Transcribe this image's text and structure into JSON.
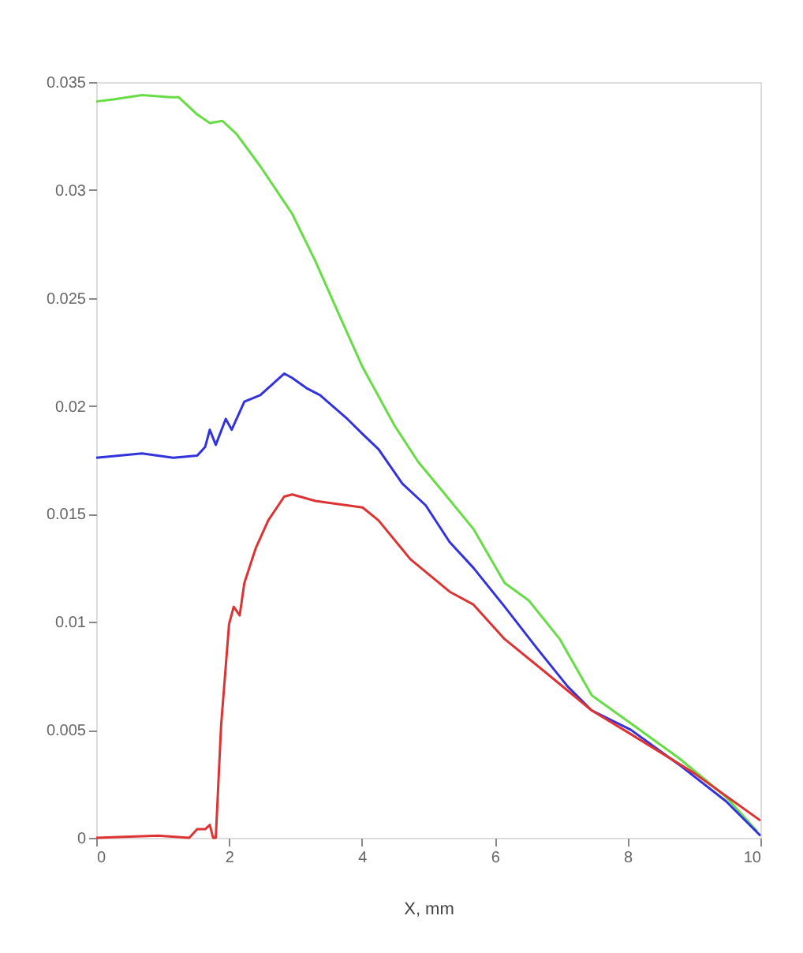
{
  "chart_data": {
    "type": "line",
    "xlabel": "X, mm",
    "xlim": [
      0,
      10
    ],
    "xticks": [
      0,
      2,
      4,
      6,
      8,
      10
    ],
    "ylim": [
      0,
      0.035
    ],
    "yticks": [
      0,
      0.005,
      0.01,
      0.015,
      0.02,
      0.025,
      0.03,
      0.035
    ],
    "grid": false,
    "legend": false,
    "marker": "none",
    "line_style": "solid",
    "series": [
      {
        "color": "#66dd44",
        "x": [
          0,
          0.26,
          0.69,
          1.12,
          1.24,
          1.52,
          1.71,
          1.9,
          2.11,
          2.47,
          2.95,
          3.3,
          3.66,
          4.01,
          4.49,
          4.85,
          5.2,
          5.68,
          6.15,
          6.51,
          6.98,
          7.46,
          8.05,
          8.77,
          9.48,
          9.95
        ],
        "values": [
          0.0341,
          0.0342,
          0.0344,
          0.0343,
          0.0343,
          0.0335,
          0.0331,
          0.0332,
          0.0326,
          0.0311,
          0.0289,
          0.0267,
          0.0242,
          0.0218,
          0.0191,
          0.0174,
          0.0161,
          0.0143,
          0.0118,
          0.011,
          0.0092,
          0.0066,
          0.0053,
          0.0037,
          0.0019,
          0.0003
        ]
      },
      {
        "color": "#3333dd",
        "x": [
          0,
          0.69,
          1.16,
          1.52,
          1.64,
          1.71,
          1.8,
          1.95,
          2.04,
          2.23,
          2.47,
          2.83,
          2.95,
          3.18,
          3.37,
          3.78,
          4.01,
          4.25,
          4.61,
          4.96,
          5.32,
          5.68,
          6.15,
          6.63,
          7.1,
          7.46,
          8.05,
          8.77,
          9.48,
          10
        ],
        "values": [
          0.0176,
          0.0178,
          0.0176,
          0.0177,
          0.0181,
          0.0189,
          0.0182,
          0.0194,
          0.0189,
          0.0202,
          0.0205,
          0.0215,
          0.0213,
          0.0208,
          0.0205,
          0.0194,
          0.0187,
          0.018,
          0.0164,
          0.0154,
          0.0137,
          0.0125,
          0.0107,
          0.0088,
          0.007,
          0.0059,
          0.005,
          0.0034,
          0.0017,
          0.0001
        ]
      },
      {
        "color": "#dd3333",
        "x": [
          0,
          0.93,
          1.4,
          1.52,
          1.64,
          1.71,
          1.76,
          1.8,
          1.88,
          2.0,
          2.07,
          2.16,
          2.23,
          2.4,
          2.59,
          2.83,
          2.95,
          3.3,
          4.01,
          4.25,
          4.73,
          5.32,
          5.68,
          6.15,
          6.75,
          7.46,
          8.05,
          9.0,
          10
        ],
        "values": [
          0,
          0.0001,
          0,
          0.0004,
          0.0004,
          0.0006,
          0,
          0,
          0.0052,
          0.0099,
          0.0107,
          0.0103,
          0.0118,
          0.0134,
          0.0147,
          0.0158,
          0.0159,
          0.0156,
          0.0153,
          0.0147,
          0.0129,
          0.0114,
          0.0108,
          0.0092,
          0.0077,
          0.0059,
          0.0048,
          0.003,
          0.0008
        ]
      }
    ]
  }
}
